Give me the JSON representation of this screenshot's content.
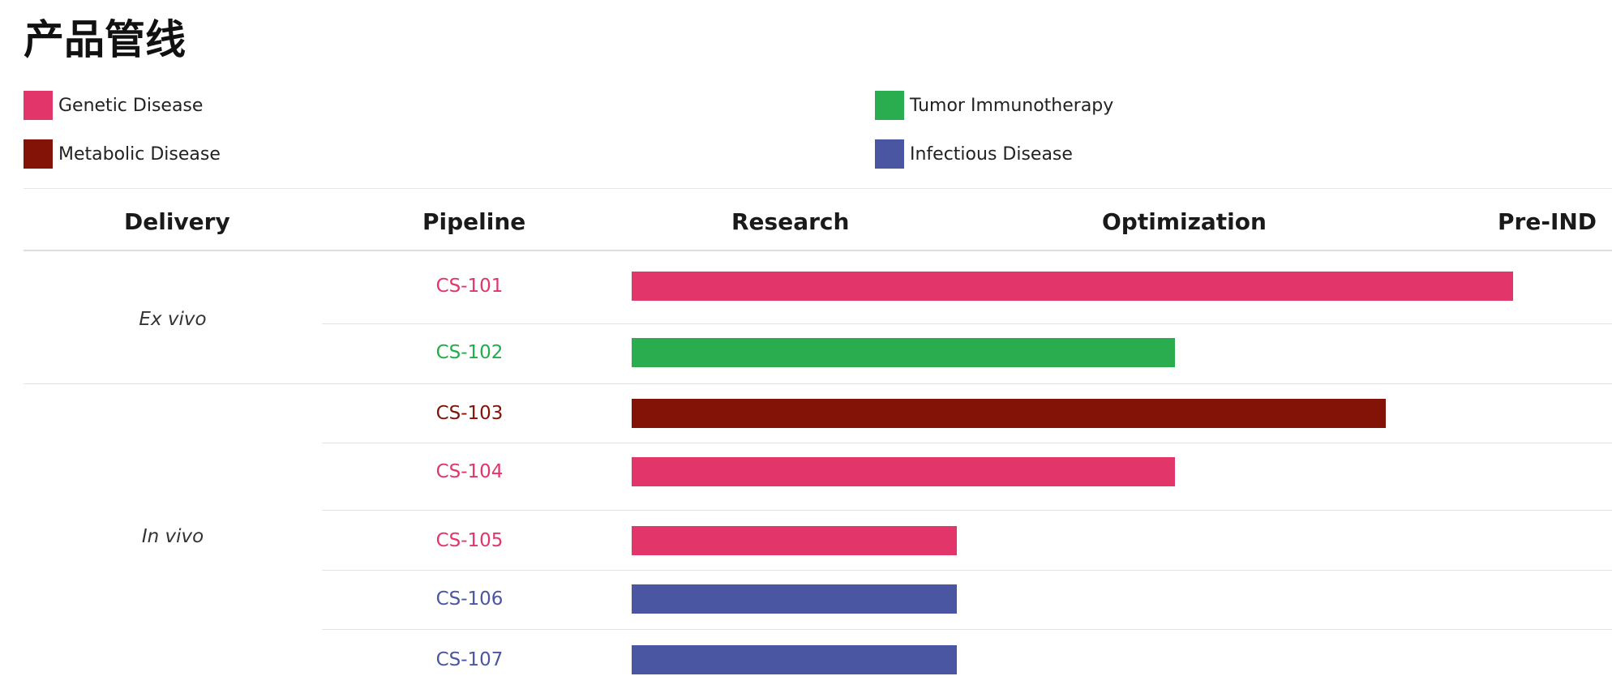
{
  "page": {
    "title": "产品管线"
  },
  "legend": [
    {
      "label": "Genetic Disease",
      "color": "#e2366b"
    },
    {
      "label": "Tumor Immunotherapy",
      "color": "#29ad4f"
    },
    {
      "label": "Metabolic Disease",
      "color": "#831207"
    },
    {
      "label": "Infectious Disease",
      "color": "#4a56a2"
    }
  ],
  "table": {
    "columns": [
      "Delivery",
      "Pipeline",
      "Research",
      "Optimization",
      "Pre-IND"
    ],
    "groups": [
      {
        "label": "Ex vivo"
      },
      {
        "label": "In vivo"
      }
    ]
  },
  "chart_data": {
    "type": "bar",
    "orientation": "horizontal",
    "categories": [
      "CS-101",
      "CS-102",
      "CS-103",
      "CS-104",
      "CS-105",
      "CS-106",
      "CS-107"
    ],
    "stages": [
      "Research",
      "Optimization",
      "Pre-IND"
    ],
    "stage_progress": [
      2.71,
      1.67,
      2.32,
      1.67,
      1.0,
      1.0,
      1.0
    ],
    "progress_unit": "stages completed out of 3 (Research → Optimization → Pre-IND)",
    "rows": [
      {
        "name": "CS-101",
        "delivery": "Ex vivo",
        "indication": "Genetic Disease",
        "color": "#e2366b",
        "progress": 2.71
      },
      {
        "name": "CS-102",
        "delivery": "Ex vivo",
        "indication": "Tumor Immunotherapy",
        "color": "#29ad4f",
        "progress": 1.67
      },
      {
        "name": "CS-103",
        "delivery": "In vivo",
        "indication": "Metabolic Disease",
        "color": "#831207",
        "progress": 2.32
      },
      {
        "name": "CS-104",
        "delivery": "In vivo",
        "indication": "Genetic Disease",
        "color": "#e2366b",
        "progress": 1.67
      },
      {
        "name": "CS-105",
        "delivery": "In vivo",
        "indication": "Genetic Disease",
        "color": "#e2366b",
        "progress": 1.0
      },
      {
        "name": "CS-106",
        "delivery": "In vivo",
        "indication": "Infectious Disease",
        "color": "#4a56a2",
        "progress": 1.0
      },
      {
        "name": "CS-107",
        "delivery": "In vivo",
        "indication": "Infectious Disease",
        "color": "#4a56a2",
        "progress": 1.0
      }
    ],
    "xlim": [
      0,
      3
    ],
    "grid": false,
    "legend_position": "top"
  }
}
